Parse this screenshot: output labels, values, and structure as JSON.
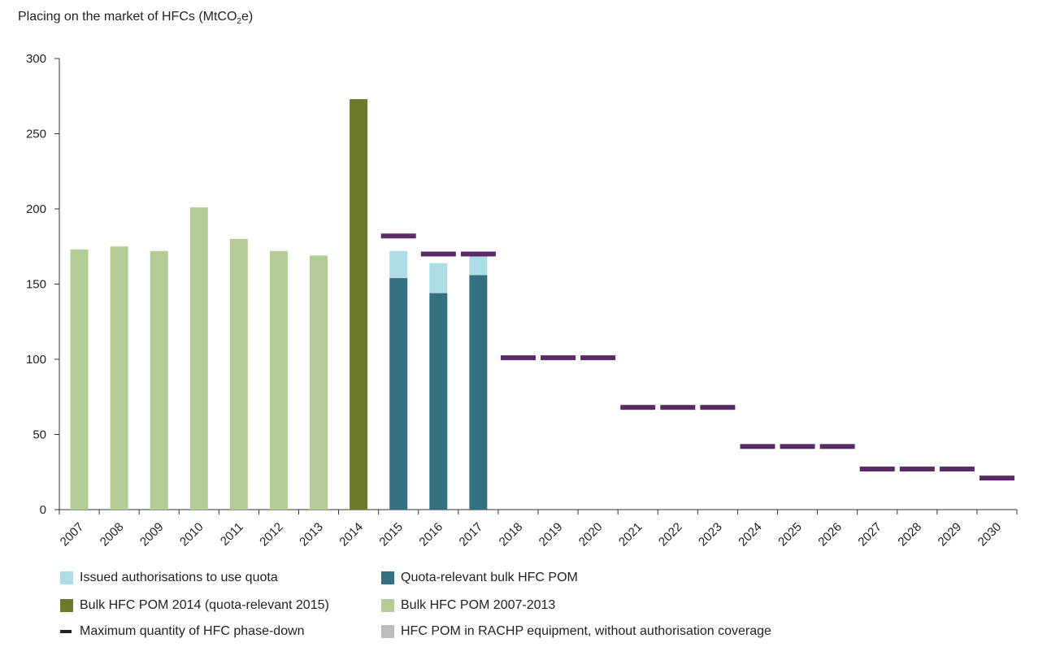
{
  "chart_data": {
    "type": "bar",
    "ylabel_main": "Placing on the market of HFCs (MtCO",
    "ylabel_sub": "2",
    "ylabel_tail": "e)",
    "ylim": [
      0,
      300
    ],
    "yticks": [
      0,
      50,
      100,
      150,
      200,
      250,
      300
    ],
    "categories": [
      "2007",
      "2008",
      "2009",
      "2010",
      "2011",
      "2012",
      "2013",
      "2014",
      "2015",
      "2016",
      "2017",
      "2018",
      "2019",
      "2020",
      "2021",
      "2022",
      "2023",
      "2024",
      "2025",
      "2026",
      "2027",
      "2028",
      "2029",
      "2030"
    ],
    "series": [
      {
        "name": "Bulk HFC POM 2007-2013",
        "color": "#b3cc96",
        "kind": "bar",
        "values": [
          173,
          175,
          172,
          201,
          180,
          172,
          169,
          null,
          null,
          null,
          null,
          null,
          null,
          null,
          null,
          null,
          null,
          null,
          null,
          null,
          null,
          null,
          null,
          null
        ]
      },
      {
        "name": "Bulk HFC POM 2014 (quota-relevant 2015)",
        "color": "#6b7a2b",
        "kind": "bar",
        "values": [
          null,
          null,
          null,
          null,
          null,
          null,
          null,
          273,
          null,
          null,
          null,
          null,
          null,
          null,
          null,
          null,
          null,
          null,
          null,
          null,
          null,
          null,
          null,
          null
        ]
      },
      {
        "name": "Quota-relevant bulk HFC POM",
        "color": "#357080",
        "kind": "stack-base",
        "values": [
          null,
          null,
          null,
          null,
          null,
          null,
          null,
          null,
          154,
          144,
          156,
          null,
          null,
          null,
          null,
          null,
          null,
          null,
          null,
          null,
          null,
          null,
          null,
          null
        ]
      },
      {
        "name": "Issued authorisations to use quota",
        "color": "#aedde6",
        "kind": "stack-top",
        "values": [
          null,
          null,
          null,
          null,
          null,
          null,
          null,
          null,
          18,
          20,
          14,
          null,
          null,
          null,
          null,
          null,
          null,
          null,
          null,
          null,
          null,
          null,
          null,
          null
        ]
      },
      {
        "name": "Maximum quantity of HFC phase-down",
        "color": "#5a2a66",
        "kind": "marker",
        "values": [
          null,
          null,
          null,
          null,
          null,
          null,
          null,
          null,
          182,
          170,
          170,
          101,
          101,
          101,
          68,
          68,
          68,
          42,
          42,
          42,
          27,
          27,
          27,
          21
        ]
      }
    ]
  },
  "legend": [
    {
      "label": "Issued authorisations to use quota",
      "color": "#aedde6",
      "shape": "square"
    },
    {
      "label": "Quota-relevant bulk HFC POM",
      "color": "#357080",
      "shape": "square"
    },
    {
      "label": "Bulk HFC POM 2014 (quota-relevant 2015)",
      "color": "#6b7a2b",
      "shape": "square"
    },
    {
      "label": "Bulk HFC POM 2007-2013",
      "color": "#b3cc96",
      "shape": "square"
    },
    {
      "label": "Maximum quantity of HFC phase-down",
      "color": "#222222",
      "shape": "line"
    },
    {
      "label": "HFC POM in RACHP equipment, without authorisation coverage",
      "color": "#bcbcbc",
      "shape": "square"
    }
  ]
}
